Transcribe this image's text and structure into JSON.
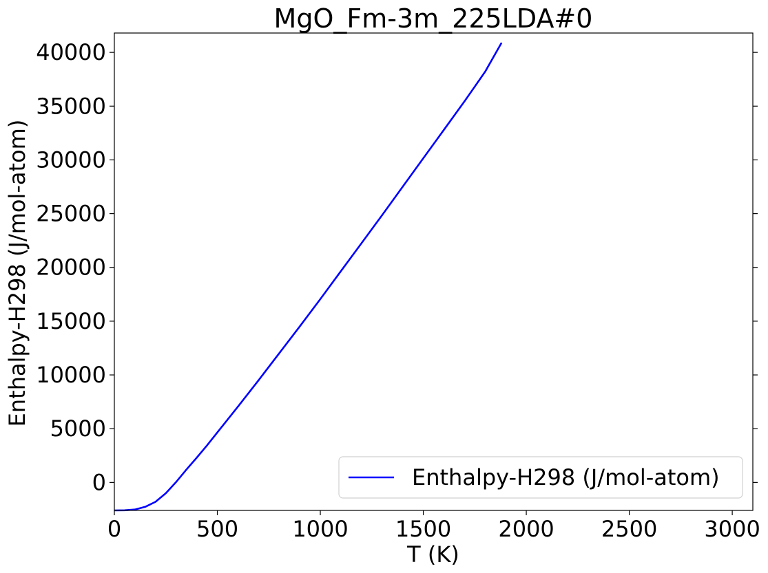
{
  "chart_data": {
    "type": "line",
    "title": "MgO_Fm-3m_225LDA#0",
    "xlabel": "T (K)",
    "ylabel": "Enthalpy-H298 (J/mol-atom)",
    "xlim": [
      0,
      3100
    ],
    "ylim": [
      -2600,
      41800
    ],
    "xticks": [
      0,
      500,
      1000,
      1500,
      2000,
      2500,
      3000
    ],
    "yticks": [
      0,
      5000,
      10000,
      15000,
      20000,
      25000,
      30000,
      35000,
      40000
    ],
    "xtick_labels": [
      "0",
      "500",
      "1000",
      "1500",
      "2000",
      "2500",
      "3000"
    ],
    "ytick_labels": [
      "0",
      "5000",
      "10000",
      "15000",
      "20000",
      "25000",
      "30000",
      "35000",
      "40000"
    ],
    "grid": false,
    "legend_position": "lower-right",
    "series": [
      {
        "name": "Enthalpy-H298 (J/mol-atom)",
        "color": "#0000ff",
        "x": [
          0,
          50,
          100,
          150,
          200,
          250,
          298,
          350,
          400,
          450,
          500,
          600,
          700,
          800,
          900,
          1000,
          1100,
          1200,
          1300,
          1400,
          1500,
          1600,
          1700,
          1800,
          1880
        ],
        "y": [
          -2600,
          -2590,
          -2520,
          -2270,
          -1800,
          -1000,
          0,
          1200,
          2300,
          3450,
          4650,
          7050,
          9500,
          12000,
          14500,
          17050,
          19650,
          22250,
          24850,
          27500,
          30150,
          32800,
          35450,
          38200,
          40900
        ]
      }
    ]
  }
}
